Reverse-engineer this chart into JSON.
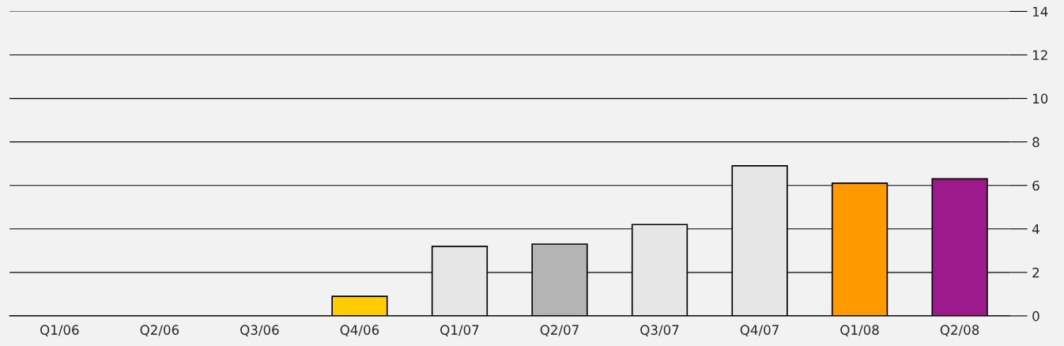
{
  "chart_data": {
    "type": "bar",
    "categories": [
      "Q1/06",
      "Q2/06",
      "Q3/06",
      "Q4/06",
      "Q1/07",
      "Q2/07",
      "Q3/07",
      "Q4/07",
      "Q1/08",
      "Q2/08"
    ],
    "values": [
      null,
      null,
      null,
      0.9,
      3.2,
      3.3,
      4.2,
      6.9,
      6.1,
      6.3
    ],
    "colors": [
      "#e6e6e6",
      "#e6e6e6",
      "#e6e6e6",
      "#ffcc00",
      "#e6e6e6",
      "#b4b4b4",
      "#e6e6e6",
      "#e6e6e6",
      "#ff9900",
      "#9c1a8c"
    ],
    "ylim": [
      0,
      14
    ],
    "yticks": [
      0,
      2,
      4,
      6,
      8,
      10,
      12,
      14
    ],
    "grid": "y"
  }
}
